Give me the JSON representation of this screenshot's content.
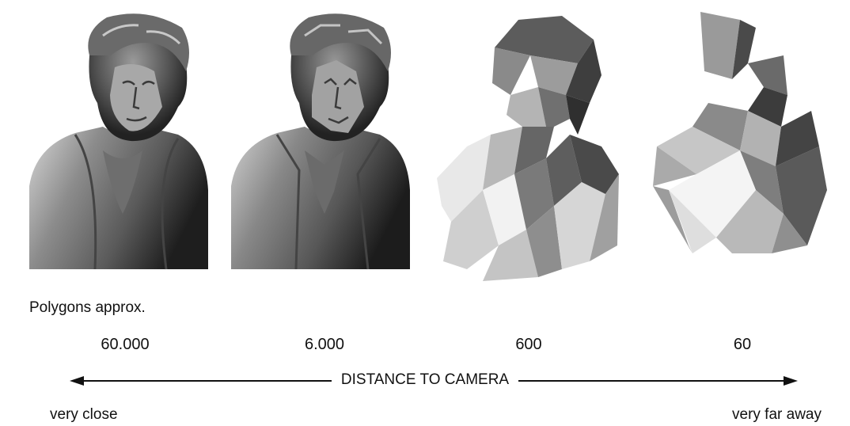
{
  "caption": "Polygons approx.",
  "levels": [
    {
      "polygons": "60.000"
    },
    {
      "polygons": "6.000"
    },
    {
      "polygons": "600"
    },
    {
      "polygons": "60"
    }
  ],
  "axis": {
    "title": "DISTANCE TO CAMERA",
    "left_label": "very close",
    "right_label": "very far away"
  }
}
